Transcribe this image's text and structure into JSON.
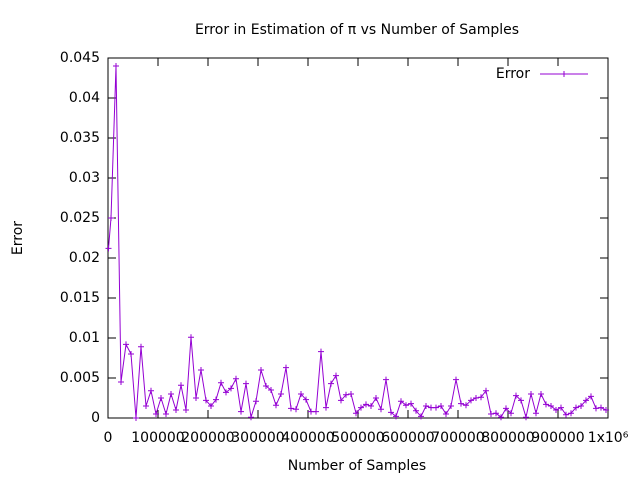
{
  "chart_data": {
    "type": "line",
    "title": "Error in Estimation of π vs Number of Samples",
    "xlabel": "Number of Samples",
    "ylabel": "Error",
    "x": [
      1000,
      6000,
      16000,
      26000,
      36000,
      46000,
      56000,
      66000,
      76000,
      86000,
      96000,
      106000,
      116000,
      126000,
      136000,
      146000,
      156000,
      166000,
      176000,
      186000,
      196000,
      206000,
      216000,
      226000,
      236000,
      246000,
      256000,
      266000,
      276000,
      286000,
      296000,
      306000,
      316000,
      326000,
      336000,
      346000,
      356000,
      366000,
      376000,
      386000,
      396000,
      406000,
      416000,
      426000,
      436000,
      446000,
      456000,
      466000,
      476000,
      486000,
      496000,
      506000,
      516000,
      526000,
      536000,
      546000,
      556000,
      566000,
      576000,
      586000,
      596000,
      606000,
      616000,
      626000,
      636000,
      646000,
      656000,
      666000,
      676000,
      686000,
      696000,
      706000,
      716000,
      726000,
      736000,
      746000,
      756000,
      766000,
      776000,
      786000,
      796000,
      806000,
      816000,
      826000,
      836000,
      846000,
      856000,
      866000,
      876000,
      886000,
      896000,
      906000,
      916000,
      926000,
      936000,
      946000,
      956000,
      966000,
      976000,
      986000,
      996000
    ],
    "series": [
      {
        "name": "Error",
        "color": "#9400d3",
        "values": [
          0.0212,
          0.025,
          0.044,
          0.0045,
          0.0092,
          0.008,
          0,
          0.0089,
          0.0015,
          0.0034,
          0.0005,
          0.0025,
          0.0005,
          0.003,
          0.001,
          0.0041,
          0.001,
          0.0101,
          0.0025,
          0.006,
          0.0022,
          0.0015,
          0.0023,
          0.0044,
          0.0032,
          0.0037,
          0.0049,
          0.0008,
          0.0043,
          0.0001,
          0.0021,
          0.006,
          0.004,
          0.0035,
          0.0016,
          0.003,
          0.0063,
          0.0012,
          0.0011,
          0.003,
          0.0023,
          0.0008,
          0.0008,
          0.0083,
          0.0013,
          0.0043,
          0.0053,
          0.0022,
          0.0029,
          0.003,
          0.0006,
          0.0013,
          0.0017,
          0.0015,
          0.0025,
          0.0011,
          0.0048,
          0.0007,
          0.0002,
          0.0021,
          0.0016,
          0.0018,
          0.0009,
          0.0002,
          0.0015,
          0.0013,
          0.0013,
          0.0015,
          0.0005,
          0.0015,
          0.0048,
          0.0018,
          0.0016,
          0.0022,
          0.0025,
          0.0026,
          0.0034,
          0.0005,
          0.0006,
          0.0001,
          0.0012,
          0.0006,
          0.0028,
          0.0022,
          0.0001,
          0.003,
          0.0006,
          0.003,
          0.0017,
          0.0015,
          0.001,
          0.0013,
          0.0004,
          0.0006,
          0.0013,
          0.0015,
          0.0022,
          0.0027,
          0.0012,
          0.0013,
          0.001
        ]
      }
    ],
    "xlim": [
      0,
      1000000
    ],
    "xticks": [
      0,
      100000,
      200000,
      300000,
      400000,
      500000,
      600000,
      700000,
      800000,
      900000,
      {
        "value": 1000000,
        "label": "1x10⁶"
      }
    ],
    "ylim": [
      0,
      0.045
    ],
    "yticks": [
      0,
      0.005,
      0.01,
      0.015,
      0.02,
      0.025,
      0.03,
      0.035,
      0.04,
      0.045
    ],
    "legend": "top-right",
    "grid": false
  }
}
